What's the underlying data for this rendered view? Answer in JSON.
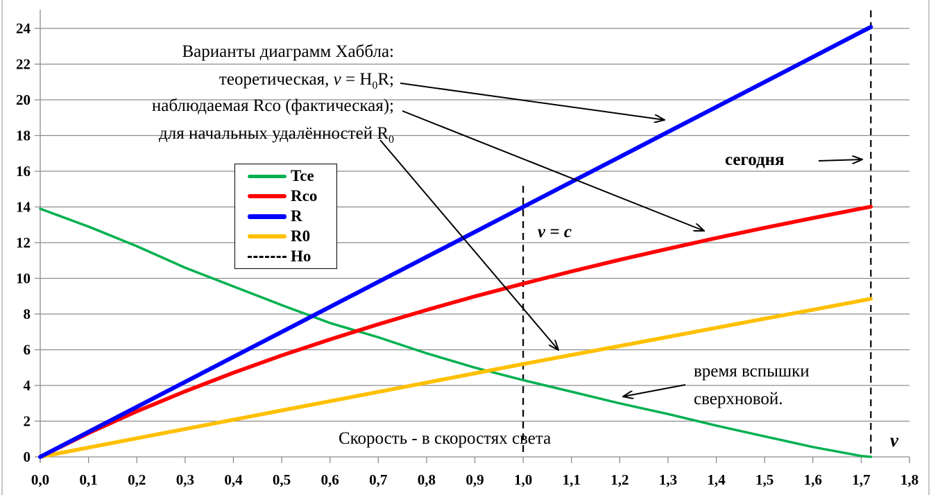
{
  "chart_data": {
    "type": "line",
    "xlabel": "Скорость  - в скоростях  света",
    "xlabel_symbol": "v",
    "xlim": [
      0,
      1.8
    ],
    "ylim": [
      0,
      25
    ],
    "x_ticks": [
      "0,0",
      "0,1",
      "0,2",
      "0,3",
      "0,4",
      "0,5",
      "0,6",
      "0,7",
      "0,8",
      "0,9",
      "1,0",
      "1,1",
      "1,2",
      "1,3",
      "1,4",
      "1,5",
      "1,6",
      "1,7",
      "1,8"
    ],
    "y_ticks": [
      "0",
      "2",
      "4",
      "6",
      "8",
      "10",
      "12",
      "14",
      "16",
      "18",
      "20",
      "22",
      "24"
    ],
    "grid": "horizontal",
    "legend_position": "left-center",
    "x": [
      0,
      0.1,
      0.2,
      0.3,
      0.4,
      0.5,
      0.6,
      0.7,
      0.8,
      0.9,
      1.0,
      1.1,
      1.2,
      1.3,
      1.4,
      1.5,
      1.6,
      1.7,
      1.72
    ],
    "series": [
      {
        "name": "Tce",
        "color": "#00b050",
        "values": [
          13.9,
          12.9,
          11.8,
          10.6,
          9.55,
          8.5,
          7.5,
          6.7,
          5.8,
          5.0,
          4.3,
          3.65,
          3.0,
          2.4,
          1.75,
          1.15,
          0.55,
          0.05,
          0
        ]
      },
      {
        "name": "Rco",
        "color": "#ff0000",
        "values": [
          0,
          1.33,
          2.55,
          3.67,
          4.71,
          5.68,
          6.58,
          7.43,
          8.23,
          8.99,
          9.7,
          10.39,
          11.04,
          11.66,
          12.26,
          12.83,
          13.38,
          13.91,
          14.01
        ]
      },
      {
        "name": "R",
        "color": "#0000ff",
        "values": [
          0,
          1.4,
          2.8,
          4.2,
          5.6,
          7.0,
          8.4,
          9.8,
          11.2,
          12.6,
          14.0,
          15.4,
          16.8,
          18.2,
          19.6,
          21.0,
          22.4,
          23.8,
          24.08
        ]
      },
      {
        "name": "R0",
        "color": "#ffc000",
        "values": [
          0,
          0.52,
          1.04,
          1.56,
          2.08,
          2.6,
          3.12,
          3.64,
          4.16,
          4.68,
          5.2,
          5.71,
          6.21,
          6.72,
          7.23,
          7.74,
          8.24,
          8.75,
          8.85
        ]
      }
    ],
    "vertical_lines": [
      {
        "name": "Ho",
        "x": 1.72,
        "style": "dashed"
      },
      {
        "x": 1.0,
        "style": "dashed",
        "label": "v = c"
      }
    ],
    "annotations": {
      "title_line1": "Варианты диаграмм Хаббла:",
      "title_line2_a": "теоретическая,  ",
      "title_line2_v": "v",
      "title_line2_b": " = H",
      "title_line2_sub": "0",
      "title_line2_c": "R;",
      "title_line3": "наблюдаемая Rco (фактическая);",
      "title_line4_a": "для начальных удалённостей  R",
      "title_line4_sub": "0",
      "today": "сегодня",
      "v_eq_c": "v = c",
      "flash_line1": "время  вспышки",
      "flash_line2": "сверхновой."
    },
    "legend": [
      "Tce",
      "Rco",
      "R",
      "R0",
      "Ho"
    ]
  }
}
